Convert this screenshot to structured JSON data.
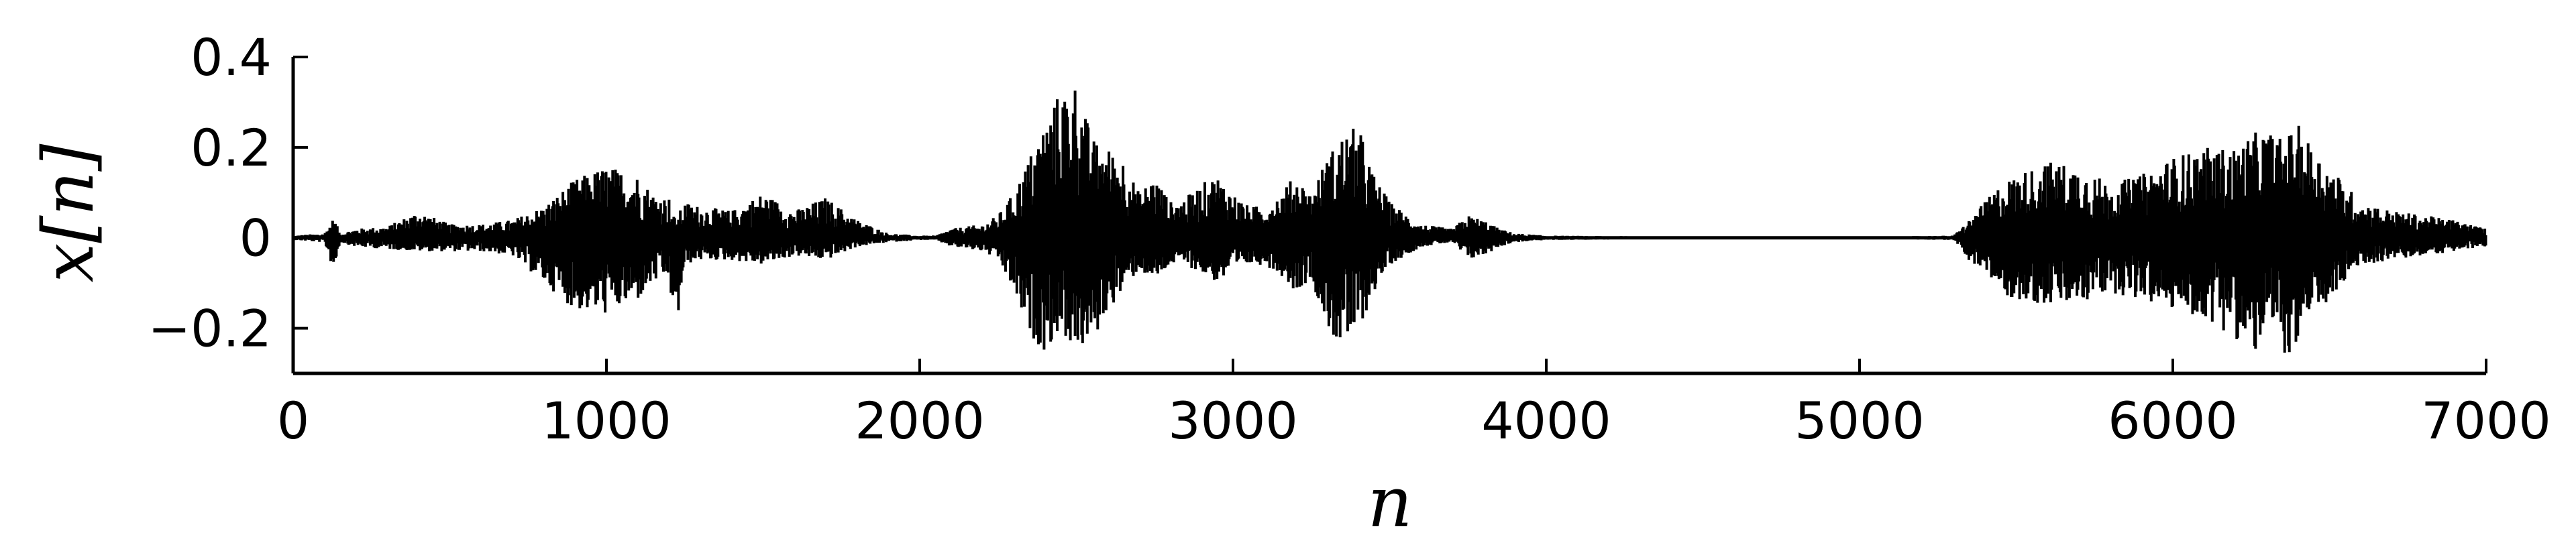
{
  "chart_data": {
    "type": "line",
    "title": "",
    "xlabel": "n",
    "ylabel": "x[n]",
    "xlim": [
      0,
      7000
    ],
    "ylim": [
      -0.3,
      0.4
    ],
    "xticks": [
      0,
      1000,
      2000,
      3000,
      4000,
      5000,
      6000,
      7000
    ],
    "xtick_labels": [
      "0",
      "1000",
      "2000",
      "3000",
      "4000",
      "5000",
      "6000",
      "7000"
    ],
    "yticks": [
      0.4,
      0.2,
      0,
      -0.2
    ],
    "ytick_labels": [
      "0.4",
      "0.2",
      "0",
      "−0.2"
    ],
    "grid": false,
    "legend": "none",
    "line_color": "#000000",
    "envelope": {
      "n": [
        0,
        100,
        130,
        150,
        200,
        300,
        400,
        500,
        600,
        700,
        800,
        900,
        1000,
        1100,
        1150,
        1200,
        1220,
        1250,
        1300,
        1400,
        1500,
        1600,
        1700,
        1800,
        1900,
        2000,
        2050,
        2100,
        2200,
        2250,
        2300,
        2350,
        2400,
        2450,
        2500,
        2550,
        2600,
        2650,
        2700,
        2750,
        2800,
        2850,
        2900,
        2950,
        3000,
        3050,
        3100,
        3150,
        3200,
        3250,
        3300,
        3350,
        3400,
        3450,
        3500,
        3600,
        3700,
        3750,
        3800,
        3850,
        3900,
        4000,
        4500,
        5000,
        5300,
        5350,
        5400,
        5450,
        5500,
        5600,
        5700,
        5800,
        5900,
        6000,
        6100,
        6200,
        6250,
        6300,
        6350,
        6400,
        6450,
        6500,
        6550,
        6600,
        6700,
        6800,
        6900,
        7000
      ],
      "upper": [
        0.005,
        0.01,
        0.045,
        0.01,
        0.02,
        0.025,
        0.06,
        0.03,
        0.03,
        0.04,
        0.07,
        0.13,
        0.16,
        0.14,
        0.1,
        0.09,
        0.04,
        0.08,
        0.07,
        0.06,
        0.1,
        0.06,
        0.09,
        0.04,
        0.01,
        0.005,
        0.005,
        0.02,
        0.03,
        0.05,
        0.1,
        0.18,
        0.26,
        0.33,
        0.35,
        0.22,
        0.2,
        0.18,
        0.1,
        0.14,
        0.08,
        0.09,
        0.12,
        0.14,
        0.1,
        0.07,
        0.07,
        0.1,
        0.14,
        0.1,
        0.18,
        0.23,
        0.25,
        0.14,
        0.08,
        0.03,
        0.02,
        0.05,
        0.04,
        0.02,
        0.01,
        0.005,
        0.002,
        0.002,
        0.005,
        0.04,
        0.08,
        0.12,
        0.14,
        0.17,
        0.16,
        0.12,
        0.14,
        0.18,
        0.2,
        0.2,
        0.23,
        0.24,
        0.22,
        0.25,
        0.2,
        0.16,
        0.12,
        0.08,
        0.06,
        0.05,
        0.04,
        0.02
      ],
      "lower": [
        -0.005,
        -0.01,
        -0.075,
        -0.01,
        -0.02,
        -0.025,
        -0.03,
        -0.03,
        -0.03,
        -0.04,
        -0.1,
        -0.16,
        -0.17,
        -0.14,
        -0.1,
        -0.09,
        -0.23,
        -0.06,
        -0.05,
        -0.05,
        -0.06,
        -0.04,
        -0.05,
        -0.02,
        -0.01,
        -0.005,
        -0.005,
        -0.02,
        -0.03,
        -0.05,
        -0.12,
        -0.22,
        -0.25,
        -0.21,
        -0.25,
        -0.24,
        -0.16,
        -0.12,
        -0.07,
        -0.1,
        -0.06,
        -0.06,
        -0.08,
        -0.1,
        -0.08,
        -0.06,
        -0.06,
        -0.08,
        -0.12,
        -0.09,
        -0.2,
        -0.25,
        -0.21,
        -0.12,
        -0.06,
        -0.02,
        -0.01,
        -0.05,
        -0.04,
        -0.02,
        -0.01,
        -0.005,
        -0.002,
        -0.002,
        -0.005,
        -0.05,
        -0.08,
        -0.12,
        -0.14,
        -0.15,
        -0.15,
        -0.12,
        -0.14,
        -0.16,
        -0.18,
        -0.22,
        -0.28,
        -0.2,
        -0.26,
        -0.25,
        -0.18,
        -0.14,
        -0.1,
        -0.06,
        -0.05,
        -0.04,
        -0.03,
        -0.02
      ]
    }
  }
}
